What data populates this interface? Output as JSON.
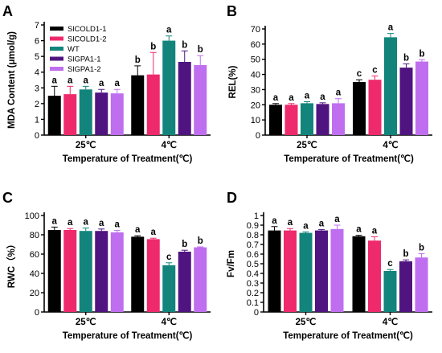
{
  "series_colors": [
    "#000000",
    "#ee2a6c",
    "#12847b",
    "#4f1480",
    "#bf6eef"
  ],
  "chart_data": [
    {
      "type": "bar",
      "panel_label": "A",
      "ylabel": "MDA Content (μmol/g)",
      "xlabel": "Temperature of Treatment(℃)",
      "categories": [
        "25℃",
        "4℃"
      ],
      "ylim": [
        0,
        7
      ],
      "yticks": [
        0,
        1,
        2,
        3,
        4,
        5,
        6,
        7
      ],
      "legend_position": "top-left",
      "series": [
        {
          "name": "SlCOLD1-1",
          "values": [
            2.5,
            3.8
          ],
          "errors": [
            0.6,
            0.6
          ],
          "letters": [
            "a",
            "b"
          ]
        },
        {
          "name": "SlCOLD1-2",
          "values": [
            2.6,
            3.85
          ],
          "errors": [
            0.5,
            1.4
          ],
          "letters": [
            "a",
            "b"
          ]
        },
        {
          "name": "WT",
          "values": [
            2.9,
            6.0
          ],
          "errors": [
            0.2,
            0.3
          ],
          "letters": [
            "a",
            "a"
          ]
        },
        {
          "name": "SlGPA1-1",
          "values": [
            2.7,
            4.65
          ],
          "errors": [
            0.2,
            0.7
          ],
          "letters": [
            "a",
            "b"
          ]
        },
        {
          "name": "SlGPA1-2",
          "values": [
            2.65,
            4.45
          ],
          "errors": [
            0.25,
            0.6
          ],
          "letters": [
            "a",
            "b"
          ]
        }
      ]
    },
    {
      "type": "bar",
      "panel_label": "B",
      "ylabel": "REL(%)",
      "xlabel": "Temperature of Treatment(℃)",
      "categories": [
        "25℃",
        "4℃"
      ],
      "ylim": [
        0,
        70
      ],
      "yticks": [
        0,
        10,
        20,
        30,
        40,
        50,
        60,
        70
      ],
      "series": [
        {
          "name": "SlCOLD1-1",
          "values": [
            20,
            35
          ],
          "errors": [
            0.8,
            1.5
          ],
          "letters": [
            "a",
            "c"
          ]
        },
        {
          "name": "SlCOLD1-2",
          "values": [
            20,
            36.5
          ],
          "errors": [
            0.8,
            2.5
          ],
          "letters": [
            "a",
            "c"
          ]
        },
        {
          "name": "WT",
          "values": [
            21,
            64.5
          ],
          "errors": [
            1.0,
            2.5
          ],
          "letters": [
            "a",
            "a"
          ]
        },
        {
          "name": "SlGPA1-1",
          "values": [
            20.5,
            44.5
          ],
          "errors": [
            0.8,
            2.5
          ],
          "letters": [
            "a",
            "b"
          ]
        },
        {
          "name": "SlGPA1-2",
          "values": [
            21,
            48.5
          ],
          "errors": [
            3.0,
            1.2
          ],
          "letters": [
            "a",
            "b"
          ]
        }
      ]
    },
    {
      "type": "bar",
      "panel_label": "C",
      "ylabel": "RWC（%）",
      "xlabel": "Temperature of Treatment(℃)",
      "categories": [
        "25℃",
        "4℃"
      ],
      "ylim": [
        0,
        100
      ],
      "yticks": [
        0,
        20,
        40,
        60,
        80,
        100
      ],
      "series": [
        {
          "name": "SlCOLD1-1",
          "values": [
            85,
            78
          ],
          "errors": [
            3,
            1
          ],
          "letters": [
            "a",
            "a"
          ]
        },
        {
          "name": "SlCOLD1-2",
          "values": [
            85,
            75.5
          ],
          "errors": [
            1.5,
            1
          ],
          "letters": [
            "a",
            "a"
          ]
        },
        {
          "name": "WT",
          "values": [
            84,
            48.5
          ],
          "errors": [
            3,
            2.5
          ],
          "letters": [
            "a",
            "c"
          ]
        },
        {
          "name": "SlGPA1-1",
          "values": [
            84,
            62.5
          ],
          "errors": [
            2,
            1.5
          ],
          "letters": [
            "a",
            "b"
          ]
        },
        {
          "name": "SlGPA1-2",
          "values": [
            82.5,
            67
          ],
          "errors": [
            2,
            0.5
          ],
          "letters": [
            "a",
            "b"
          ]
        }
      ]
    },
    {
      "type": "bar",
      "panel_label": "D",
      "ylabel": "Fv/Fm",
      "xlabel": "Temperature of Treatment(℃)",
      "categories": [
        "25℃",
        "4℃"
      ],
      "ylim": [
        0,
        1.0
      ],
      "yticks": [
        0,
        0.1,
        0.2,
        0.3,
        0.4,
        0.5,
        0.6,
        0.7,
        0.8,
        0.9,
        1.0
      ],
      "yticklabels": [
        "0",
        "0.1",
        "0.2",
        "0.3",
        "0.4",
        "0.5",
        "0.6",
        "0.7",
        "0.8",
        "0.9",
        "1"
      ],
      "series": [
        {
          "name": "SlCOLD1-1",
          "values": [
            0.845,
            0.785
          ],
          "errors": [
            0.04,
            0.01
          ],
          "letters": [
            "a",
            "a"
          ]
        },
        {
          "name": "SlCOLD1-2",
          "values": [
            0.845,
            0.74
          ],
          "errors": [
            0.02,
            0.04
          ],
          "letters": [
            "a",
            "a"
          ]
        },
        {
          "name": "WT",
          "values": [
            0.82,
            0.425
          ],
          "errors": [
            0.01,
            0.015
          ],
          "letters": [
            "a",
            "c"
          ]
        },
        {
          "name": "SlGPA1-1",
          "values": [
            0.845,
            0.525
          ],
          "errors": [
            0.01,
            0.015
          ],
          "letters": [
            "a",
            "b"
          ]
        },
        {
          "name": "SlGPA1-2",
          "values": [
            0.86,
            0.565
          ],
          "errors": [
            0.04,
            0.04
          ],
          "letters": [
            "a",
            "b"
          ]
        }
      ]
    }
  ]
}
